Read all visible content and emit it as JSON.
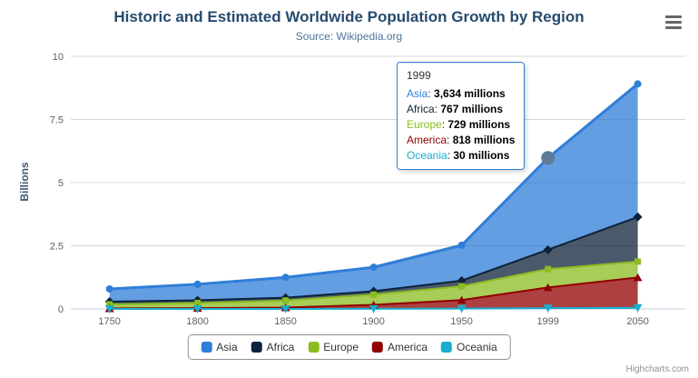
{
  "title": "Historic and Estimated Worldwide Population Growth by Region",
  "subtitle": "Source: Wikipedia.org",
  "y_axis_title": "Billions",
  "credits": "Highcharts.com",
  "tooltip": {
    "header": "1999",
    "rows": [
      {
        "name": "Asia",
        "color": "#2f7ed8",
        "value": "3,634 millions"
      },
      {
        "name": "Africa",
        "color": "#0d233a",
        "value": "767 millions"
      },
      {
        "name": "Europe",
        "color": "#8bbc21",
        "value": "729 millions"
      },
      {
        "name": "America",
        "color": "#910000",
        "value": "818 millions"
      },
      {
        "name": "Oceania",
        "color": "#1aadce",
        "value": "30 millions"
      }
    ]
  },
  "chart_data": {
    "type": "area",
    "stacking": "normal",
    "title": "Historic and Estimated Worldwide Population Growth by Region",
    "subtitle": "Source: Wikipedia.org",
    "xlabel": "",
    "ylabel": "Billions",
    "unit": "millions",
    "x": [
      1750,
      1800,
      1850,
      1900,
      1950,
      1999,
      2050
    ],
    "x_labels": [
      "1750",
      "1800",
      "1850",
      "1900",
      "1950",
      "1999",
      "2050"
    ],
    "series": [
      {
        "name": "Asia",
        "color": "#2f7ed8",
        "marker": "circle",
        "values": [
          502,
          635,
          809,
          947,
          1402,
          3634,
          5268
        ]
      },
      {
        "name": "Africa",
        "color": "#0d233a",
        "marker": "diamond",
        "values": [
          106,
          107,
          111,
          133,
          221,
          767,
          1766
        ]
      },
      {
        "name": "Europe",
        "color": "#8bbc21",
        "marker": "square",
        "values": [
          163,
          203,
          276,
          408,
          547,
          729,
          628
        ]
      },
      {
        "name": "America",
        "color": "#910000",
        "marker": "triangle",
        "values": [
          18,
          31,
          54,
          156,
          339,
          818,
          1201
        ]
      },
      {
        "name": "Oceania",
        "color": "#1aadce",
        "marker": "triangle-down",
        "values": [
          2,
          2,
          2,
          6,
          13,
          30,
          46
        ]
      }
    ],
    "yticks": [
      0,
      2.5,
      5,
      7.5,
      10
    ],
    "ytick_labels": [
      "0",
      "2.5",
      "5",
      "7.5",
      "10"
    ],
    "ylim": [
      0,
      10
    ],
    "grid": true,
    "grid_color": "#d8d8d8",
    "axis_line_color": "#c0d0e0",
    "axis_label_color": "#606060",
    "fill_opacity": 0.75,
    "legend_position": "bottom",
    "hover_point": {
      "series": "Asia",
      "x": 1999,
      "stacked_value_billions": 5.978,
      "marker_color": "#5f7a99"
    }
  }
}
